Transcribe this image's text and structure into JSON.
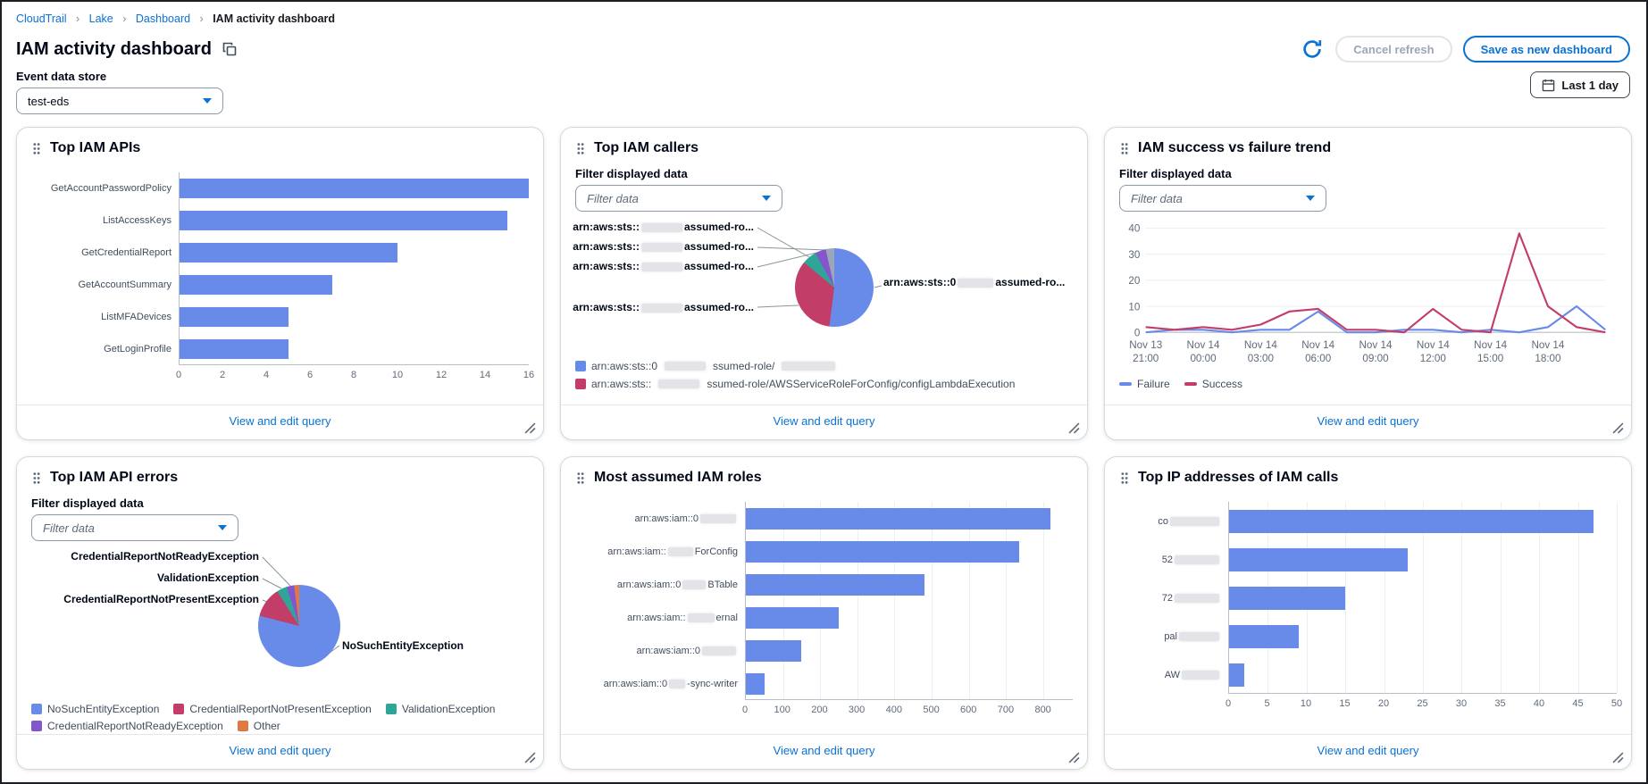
{
  "breadcrumb": {
    "separator": "›",
    "items": [
      {
        "label": "CloudTrail"
      },
      {
        "label": "Lake"
      },
      {
        "label": "Dashboard"
      },
      {
        "label": "IAM activity dashboard"
      }
    ]
  },
  "header": {
    "title": "IAM activity dashboard",
    "buttons": {
      "cancel_refresh": "Cancel refresh",
      "save": "Save as new dashboard",
      "time_range": "Last 1 day"
    }
  },
  "event_data_store": {
    "label": "Event data store",
    "value": "test-eds"
  },
  "common": {
    "filter_label": "Filter displayed data",
    "filter_placeholder": "Filter data",
    "view_edit_query": "View and edit query"
  },
  "colors": {
    "blue": "#688ae8",
    "red": "#c33d69",
    "teal": "#2ea597",
    "purple": "#8456ce",
    "orange": "#e07941",
    "gray": "#9ba7b6",
    "link": "#0972d3"
  },
  "chart_data": [
    {
      "id": "top-iam-apis",
      "title": "Top IAM APIs",
      "type": "bar",
      "filter": false,
      "categories": [
        [
          {
            "t": "GetAccountPasswordPolicy"
          }
        ],
        [
          {
            "t": "ListAccessKeys"
          }
        ],
        [
          {
            "t": "GetCredentialReport"
          }
        ],
        [
          {
            "t": "GetAccountSummary"
          }
        ],
        [
          {
            "t": "ListMFADevices"
          }
        ],
        [
          {
            "t": "GetLoginProfile"
          }
        ]
      ],
      "values": [
        16,
        15,
        10,
        7,
        5,
        5
      ],
      "xmax": 16,
      "ticks": [
        0,
        2,
        4,
        6,
        8,
        10,
        12,
        14,
        16
      ],
      "gridlines": false,
      "bar_color": "#688ae8"
    },
    {
      "id": "top-iam-callers",
      "title": "Top IAM callers",
      "type": "pie",
      "filter": true,
      "slices": [
        {
          "name": "assumed-role-1",
          "value": 52,
          "color": "#688ae8"
        },
        {
          "name": "assumed-role-2",
          "value": 34,
          "color": "#c33d69"
        },
        {
          "name": "assumed-role-3",
          "value": 6,
          "color": "#2ea597"
        },
        {
          "name": "assumed-role-4",
          "value": 4.5,
          "color": "#8456ce"
        },
        {
          "name": "assumed-role-5",
          "value": 3.5,
          "color": "#9ba7b6"
        }
      ],
      "labels": [
        {
          "parts": [
            {
              "t": "arn:aws:sts::"
            },
            {
              "r": 46
            },
            {
              "t": "assumed-ro..."
            }
          ]
        },
        {
          "parts": [
            {
              "t": "arn:aws:sts::"
            },
            {
              "r": 46
            },
            {
              "t": "assumed-ro..."
            }
          ]
        },
        {
          "parts": [
            {
              "t": "arn:aws:sts::"
            },
            {
              "r": 46
            },
            {
              "t": "assumed-ro..."
            }
          ]
        },
        {
          "parts": [
            {
              "t": "arn:aws:sts::"
            },
            {
              "r": 46
            },
            {
              "t": "assumed-ro..."
            }
          ]
        },
        {
          "parts": [
            {
              "t": "arn:aws:sts::0"
            },
            {
              "r": 40
            },
            {
              "t": "assumed-ro..."
            }
          ]
        }
      ],
      "legend": [
        {
          "color": "#688ae8",
          "parts": [
            {
              "t": "arn:aws:sts::0"
            },
            {
              "r": 46
            },
            {
              "t": "ssumed-role/"
            },
            {
              "r": 60
            }
          ]
        },
        {
          "color": "#c33d69",
          "parts": [
            {
              "t": "arn:aws:sts::"
            },
            {
              "r": 46
            },
            {
              "t": "ssumed-role/AWSServiceRoleForConfig/configLambdaExecution"
            }
          ]
        }
      ]
    },
    {
      "id": "iam-success-failure-trend",
      "title": "IAM success vs failure trend",
      "type": "line",
      "filter": true,
      "x_labels": [
        {
          "line1": "Nov 13",
          "line2": "21:00"
        },
        {
          "line1": "Nov 14",
          "line2": "00:00"
        },
        {
          "line1": "Nov 14",
          "line2": "03:00"
        },
        {
          "line1": "Nov 14",
          "line2": "06:00"
        },
        {
          "line1": "Nov 14",
          "line2": "09:00"
        },
        {
          "line1": "Nov 14",
          "line2": "12:00"
        },
        {
          "line1": "Nov 14",
          "line2": "15:00"
        },
        {
          "line1": "Nov 14",
          "line2": "18:00"
        }
      ],
      "y_ticks": [
        0,
        10,
        20,
        30,
        40
      ],
      "ymax": 40,
      "series": [
        {
          "name": "Failure",
          "color": "#688ae8",
          "values": [
            0,
            1,
            1,
            0,
            1,
            1,
            8,
            0,
            0,
            1,
            1,
            0,
            1,
            0,
            2,
            10,
            1
          ]
        },
        {
          "name": "Success",
          "color": "#c33d69",
          "values": [
            2,
            1,
            2,
            1,
            3,
            8,
            9,
            1,
            1,
            0,
            9,
            1,
            0,
            38,
            10,
            2,
            0
          ]
        }
      ]
    },
    {
      "id": "top-iam-api-errors",
      "title": "Top IAM API errors",
      "type": "pie",
      "filter": true,
      "slices": [
        {
          "name": "NoSuchEntityException",
          "value": 79,
          "color": "#688ae8"
        },
        {
          "name": "CredentialReportNotPresentException",
          "value": 12,
          "color": "#c33d69"
        },
        {
          "name": "ValidationException",
          "value": 4,
          "color": "#2ea597"
        },
        {
          "name": "CredentialReportNotReadyException",
          "value": 3,
          "color": "#8456ce"
        },
        {
          "name": "Other",
          "value": 2,
          "color": "#e07941"
        }
      ],
      "labels": [
        {
          "parts": [
            {
              "t": "CredentialReportNotReadyException"
            }
          ]
        },
        {
          "parts": [
            {
              "t": "ValidationException"
            }
          ]
        },
        {
          "parts": [
            {
              "t": "CredentialReportNotPresentException"
            }
          ]
        },
        {
          "parts": [
            {
              "t": "NoSuchEntityException"
            }
          ]
        }
      ],
      "legend": [
        {
          "color": "#688ae8",
          "parts": [
            {
              "t": "NoSuchEntityException"
            }
          ]
        },
        {
          "color": "#c33d69",
          "parts": [
            {
              "t": "CredentialReportNotPresentException"
            }
          ]
        },
        {
          "color": "#2ea597",
          "parts": [
            {
              "t": "ValidationException"
            }
          ]
        },
        {
          "color": "#8456ce",
          "parts": [
            {
              "t": "CredentialReportNotReadyException"
            }
          ]
        },
        {
          "color": "#e07941",
          "parts": [
            {
              "t": "Other"
            }
          ]
        }
      ]
    },
    {
      "id": "most-assumed-iam-roles",
      "title": "Most assumed IAM roles",
      "type": "bar",
      "filter": false,
      "categories": [
        [
          {
            "t": "arn:aws:iam::0"
          },
          {
            "r": 40
          }
        ],
        [
          {
            "t": "arn:aws:iam::"
          },
          {
            "r": 28
          },
          {
            "t": "ForConfig"
          }
        ],
        [
          {
            "t": "arn:aws:iam::0"
          },
          {
            "r": 26
          },
          {
            "t": "BTable"
          }
        ],
        [
          {
            "t": "arn:aws:iam::"
          },
          {
            "r": 30
          },
          {
            "t": "ernal"
          }
        ],
        [
          {
            "t": "arn:aws:iam::0"
          },
          {
            "r": 38
          }
        ],
        [
          {
            "t": "arn:aws:iam::0"
          },
          {
            "r": 18
          },
          {
            "t": "-sync-writer"
          }
        ]
      ],
      "values": [
        820,
        735,
        480,
        250,
        150,
        50
      ],
      "xmax": 880,
      "ticks": [
        0,
        100,
        200,
        300,
        400,
        500,
        600,
        700,
        800
      ],
      "gridlines": true,
      "bar_color": "#688ae8"
    },
    {
      "id": "top-ip-addresses",
      "title": "Top IP addresses of IAM calls",
      "type": "bar",
      "filter": false,
      "categories": [
        [
          {
            "t": "co"
          },
          {
            "r": 55
          }
        ],
        [
          {
            "t": "52"
          },
          {
            "r": 50
          }
        ],
        [
          {
            "t": "72"
          },
          {
            "r": 50
          }
        ],
        [
          {
            "t": "pal"
          },
          {
            "r": 45
          }
        ],
        [
          {
            "t": "AW"
          },
          {
            "r": 42
          }
        ]
      ],
      "values": [
        47,
        23,
        15,
        9,
        2
      ],
      "xmax": 50,
      "ticks": [
        0,
        5,
        10,
        15,
        20,
        25,
        30,
        35,
        40,
        45,
        50
      ],
      "gridlines": true,
      "bar_color": "#688ae8"
    }
  ]
}
